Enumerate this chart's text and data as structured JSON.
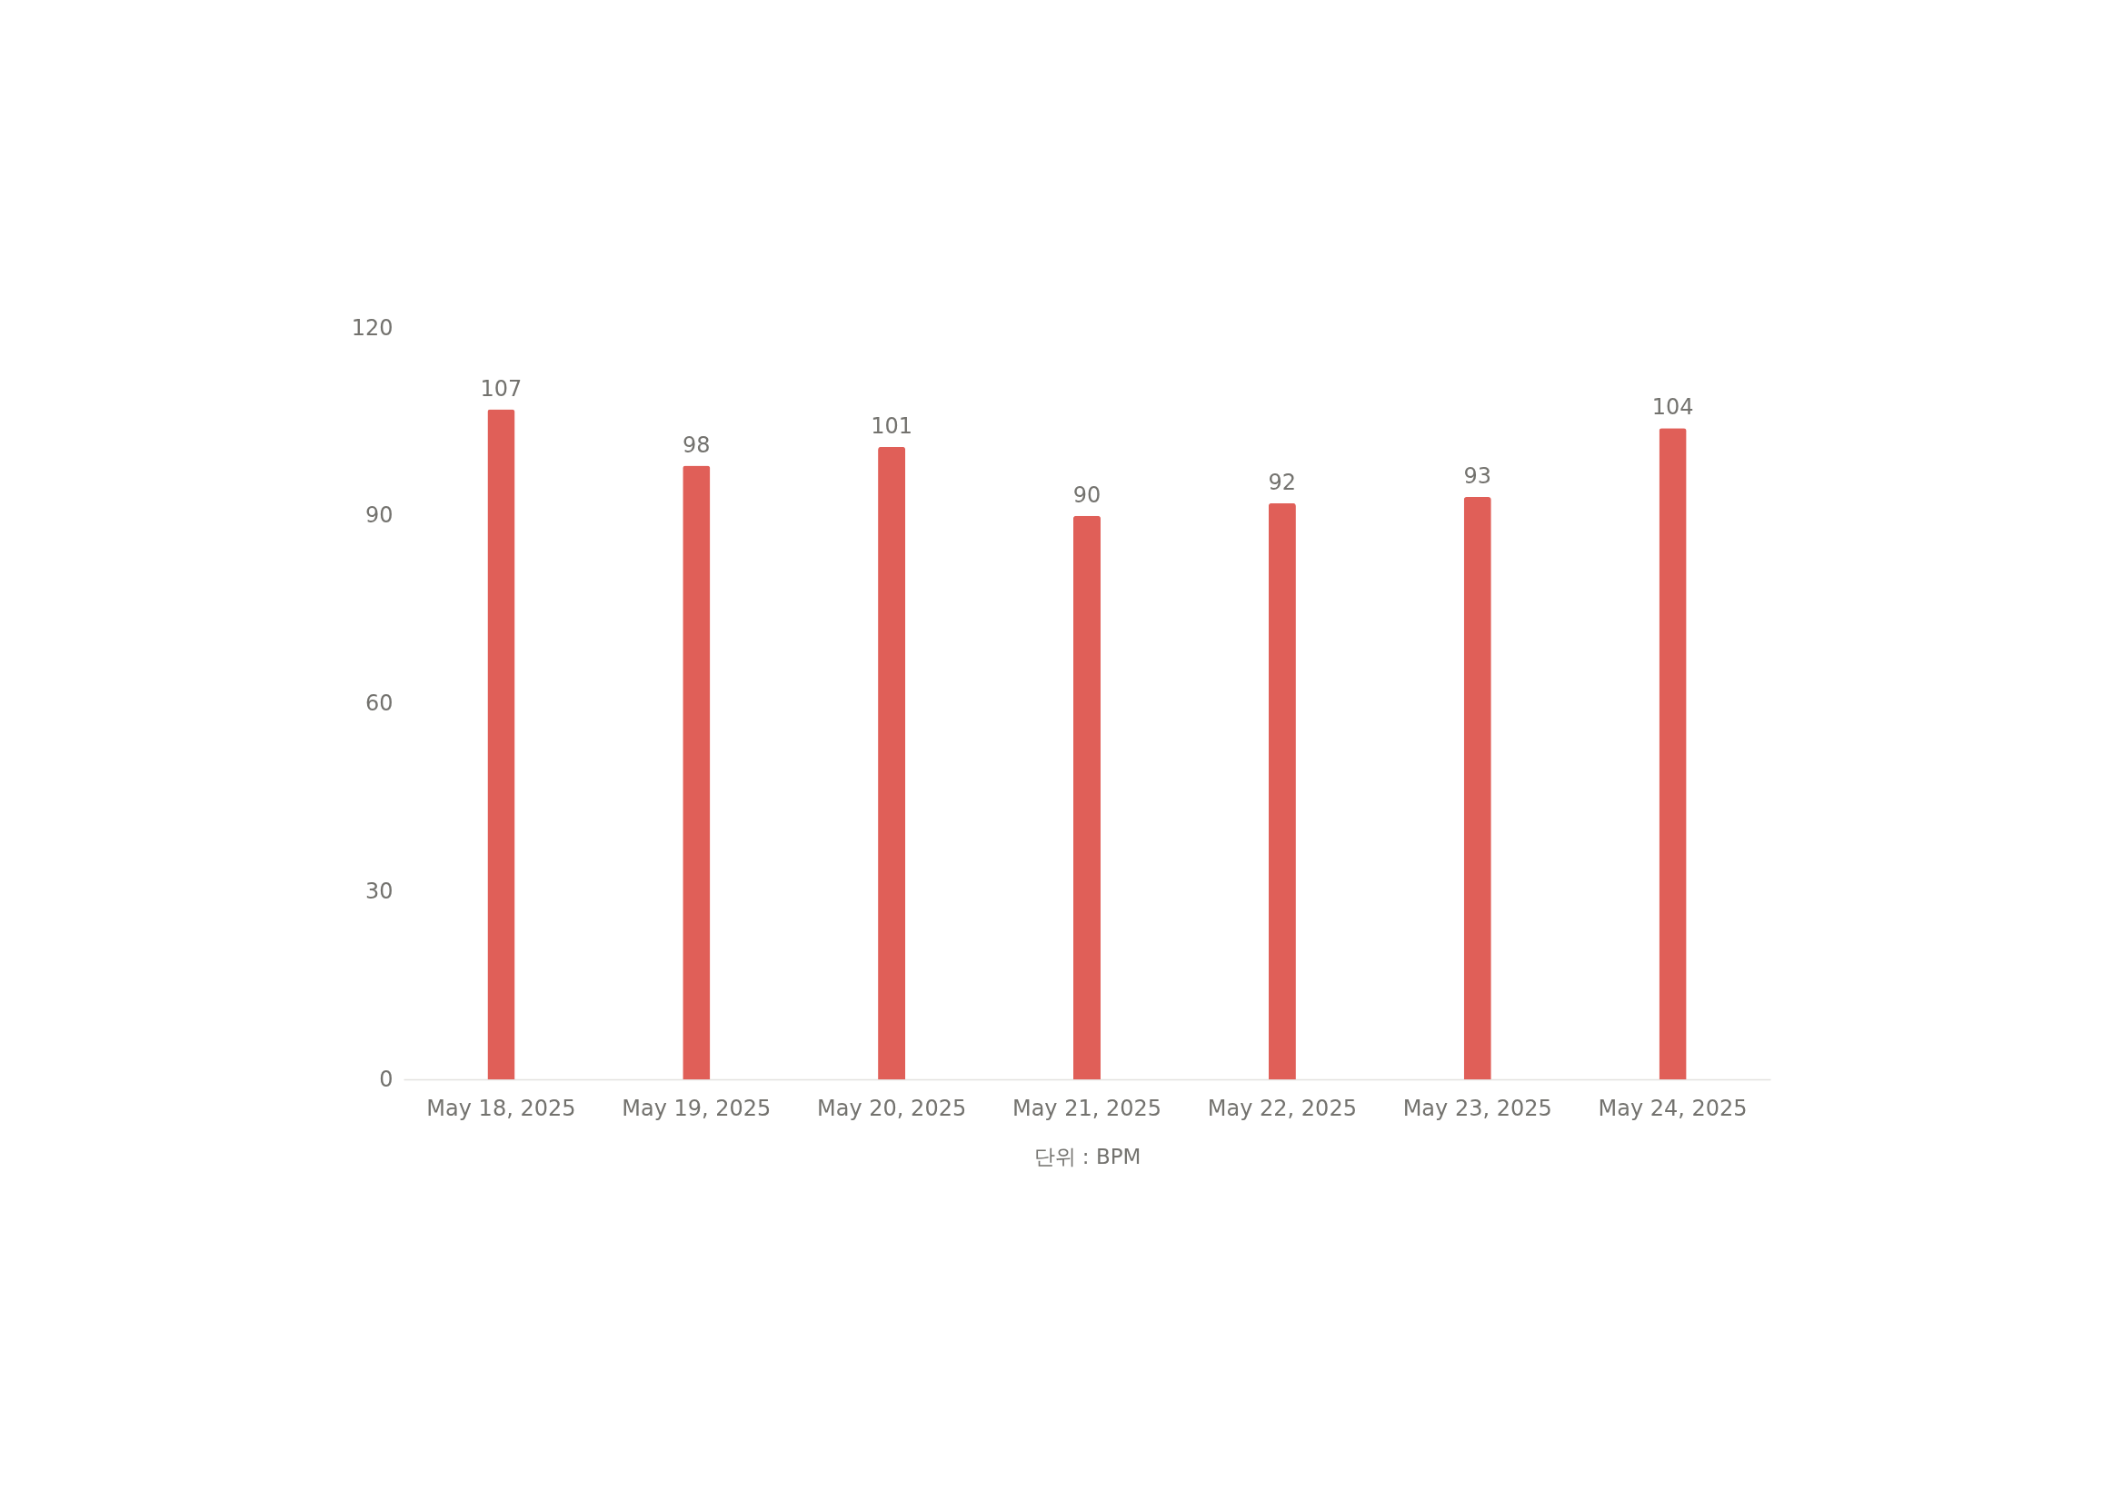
{
  "chart_data": {
    "type": "bar",
    "xlabel": "단위 : BPM",
    "categories": [
      "May 18, 2025",
      "May 19, 2025",
      "May 20, 2025",
      "May 21, 2025",
      "May 22, 2025",
      "May 23, 2025",
      "May 24, 2025"
    ],
    "values": [
      107,
      98,
      101,
      90,
      92,
      93,
      104
    ],
    "color": "#e05f58",
    "ylim": [
      0,
      120
    ],
    "yticks": [
      0,
      30,
      60,
      90,
      120
    ],
    "data_labels": true
  }
}
